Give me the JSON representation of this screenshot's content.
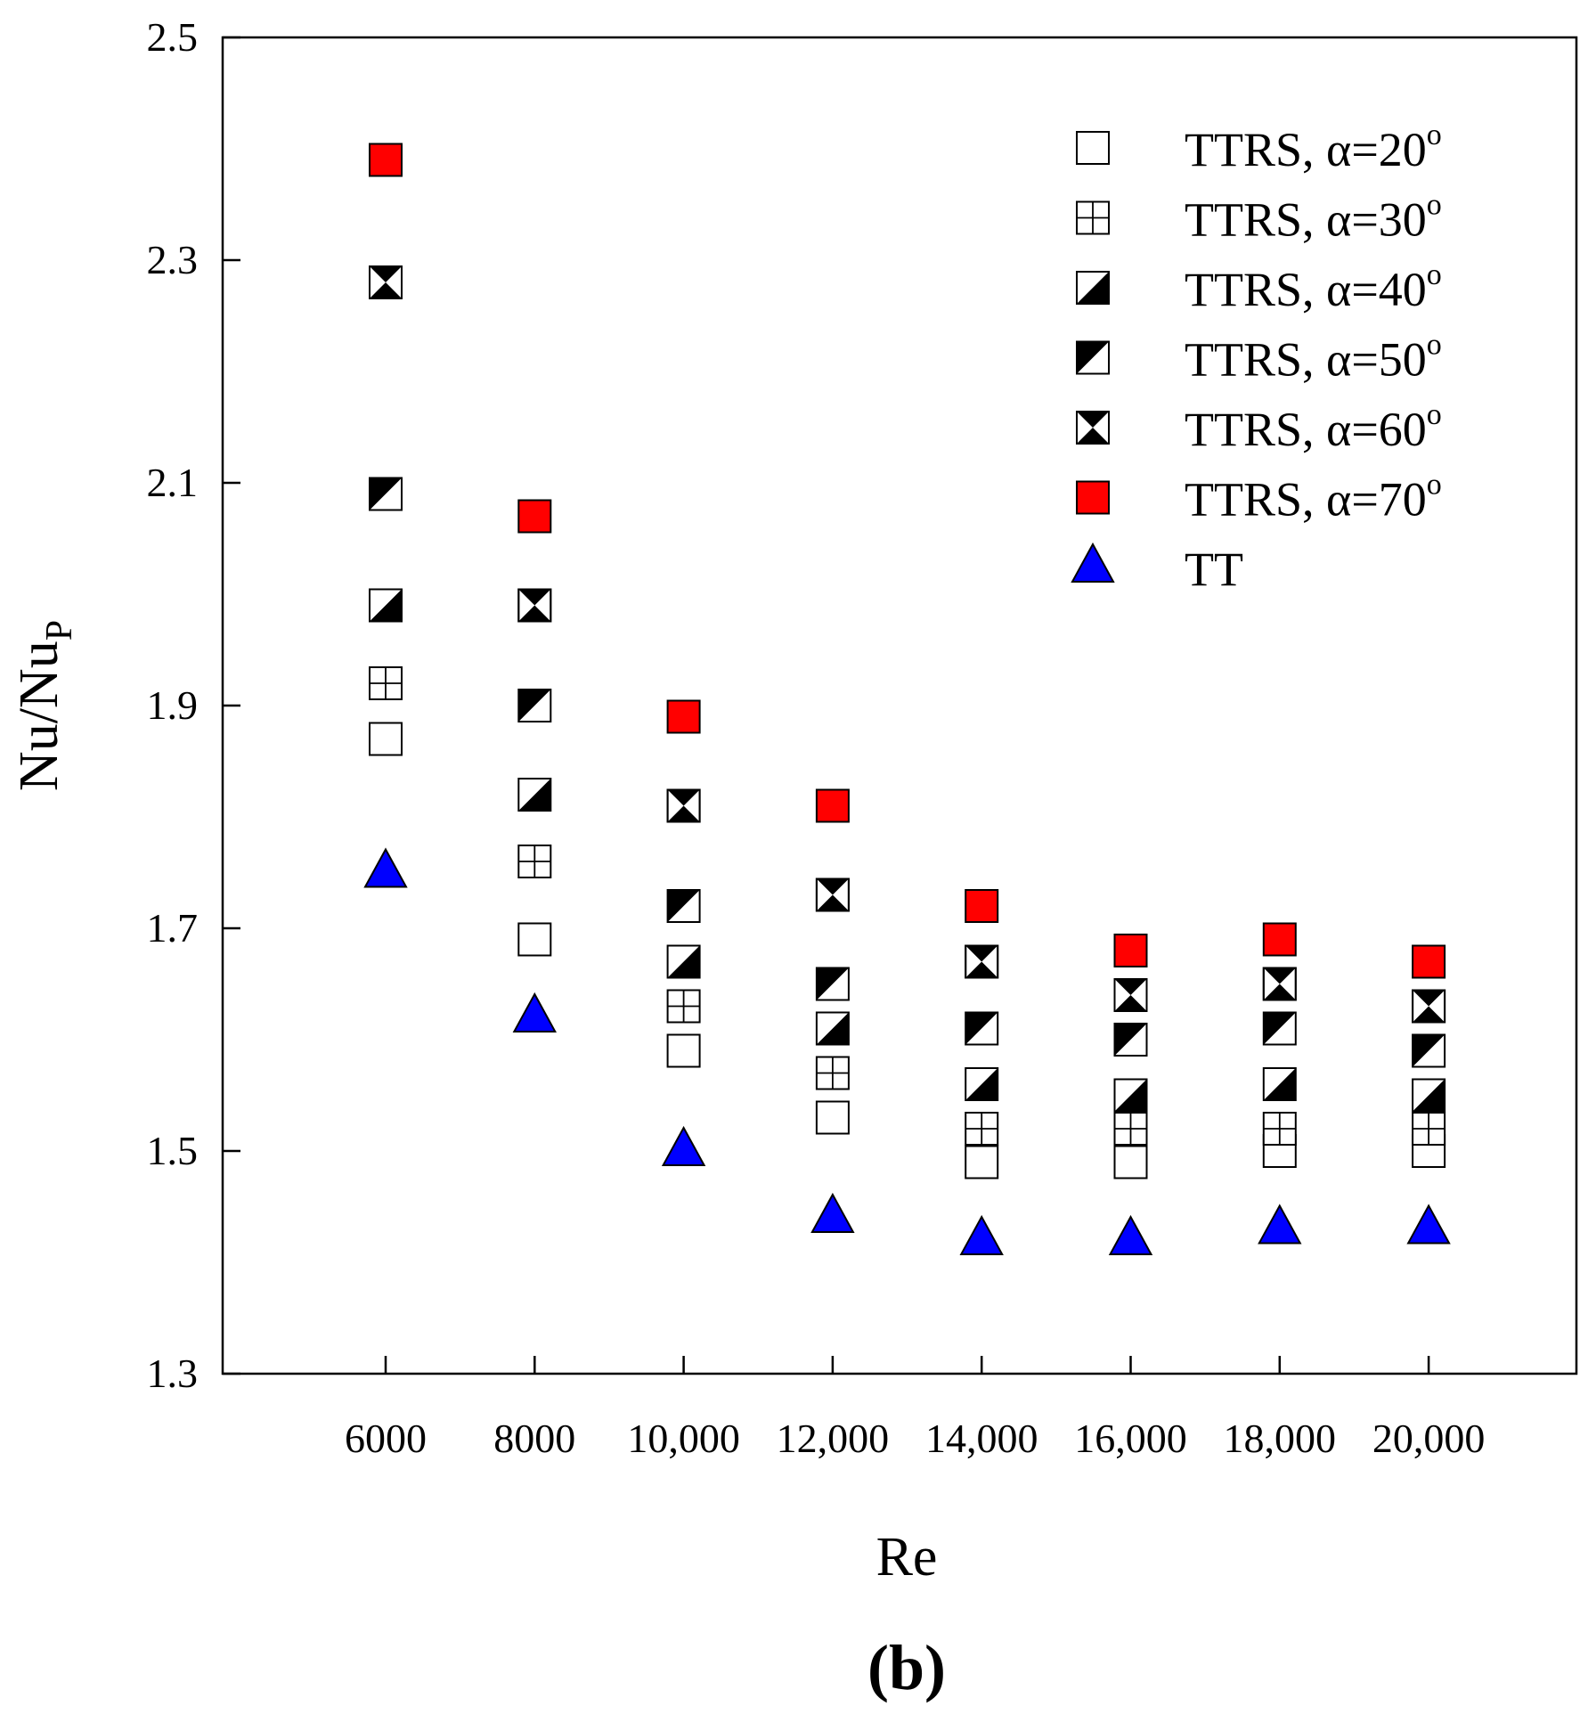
{
  "chart_data": {
    "type": "scatter",
    "panel_label": "(b)",
    "xlabel": "Re",
    "ylabel": "Nu/Nu",
    "ylabel_subscript": "P",
    "categories": [
      "6000",
      "8000",
      "10,000",
      "12,000",
      "14,000",
      "16,000",
      "18,000",
      "20,000"
    ],
    "y_ticks": [
      "1.3",
      "1.5",
      "1.7",
      "1.9",
      "2.1",
      "2.3",
      "2.5"
    ],
    "ylim": [
      1.3,
      2.5
    ],
    "grid": false,
    "legend_position": "top-right",
    "series": [
      {
        "name": "TTRS, α=20",
        "superscript": "o",
        "marker": "square-open",
        "color": "#ffffff",
        "values": [
          1.87,
          1.69,
          1.59,
          1.53,
          1.49,
          1.49,
          1.5,
          1.5
        ]
      },
      {
        "name": "TTRS, α=30",
        "superscript": "o",
        "marker": "square-plus",
        "color": "#ffffff",
        "values": [
          1.92,
          1.76,
          1.63,
          1.57,
          1.52,
          1.52,
          1.52,
          1.52
        ]
      },
      {
        "name": "TTRS, α=40",
        "superscript": "o",
        "marker": "square-half-lower-right",
        "color": "#000000",
        "values": [
          1.99,
          1.82,
          1.67,
          1.61,
          1.56,
          1.55,
          1.56,
          1.55
        ]
      },
      {
        "name": "TTRS, α=50",
        "superscript": "o",
        "marker": "square-half-upper-left",
        "color": "#000000",
        "values": [
          2.09,
          1.9,
          1.72,
          1.65,
          1.61,
          1.6,
          1.61,
          1.59
        ]
      },
      {
        "name": "TTRS, α=60",
        "superscript": "o",
        "marker": "square-hourglass",
        "color": "#000000",
        "values": [
          2.28,
          1.99,
          1.81,
          1.73,
          1.67,
          1.64,
          1.65,
          1.63
        ]
      },
      {
        "name": "TTRS, α=70",
        "superscript": "o",
        "marker": "square-filled",
        "color": "#ff0000",
        "values": [
          2.39,
          2.07,
          1.89,
          1.81,
          1.72,
          1.68,
          1.69,
          1.67
        ]
      },
      {
        "name": "TT",
        "superscript": "",
        "marker": "triangle-filled",
        "color": "#0000ff",
        "values": [
          1.75,
          1.62,
          1.5,
          1.44,
          1.42,
          1.42,
          1.43,
          1.43
        ]
      }
    ]
  }
}
